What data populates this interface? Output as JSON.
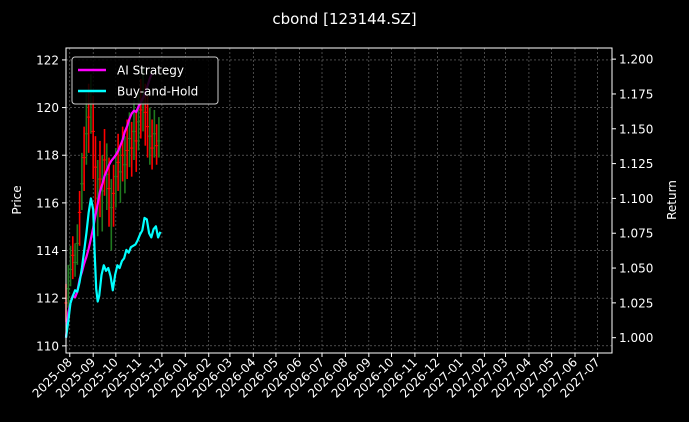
{
  "chart_data": {
    "type": "line",
    "title": "cbond [123144.SZ]",
    "xlabel": "",
    "ylabel_left": "Price",
    "ylabel_right": "Return",
    "x_range": [
      "2025-07-27",
      "2027-07-20"
    ],
    "x_ticks": [
      "2025-08",
      "2025-09",
      "2025-10",
      "2025-11",
      "2025-12",
      "2026-01",
      "2026-02",
      "2026-03",
      "2026-04",
      "2026-05",
      "2026-06",
      "2026-07",
      "2026-08",
      "2026-09",
      "2026-10",
      "2026-11",
      "2026-12",
      "2027-01",
      "2027-02",
      "2027-03",
      "2027-04",
      "2027-05",
      "2027-06",
      "2027-07"
    ],
    "ylim_left": [
      109.7,
      122.5
    ],
    "yticks_left": [
      "110",
      "112",
      "114",
      "116",
      "118",
      "120",
      "122"
    ],
    "ylim_right": [
      0.989,
      1.208
    ],
    "yticks_right": [
      "1.000",
      "1.025",
      "1.050",
      "1.075",
      "1.100",
      "1.125",
      "1.150",
      "1.175",
      "1.200"
    ],
    "grid": true,
    "legend": {
      "position": "top-left"
    },
    "series": [
      {
        "name": "AI Strategy",
        "axis": "right",
        "color": "#ff00ff",
        "points": [
          [
            "2025-07-27",
            1.0
          ],
          [
            "2025-07-30",
            1.018
          ],
          [
            "2025-08-02",
            1.025
          ],
          [
            "2025-08-05",
            1.03
          ],
          [
            "2025-08-08",
            1.029
          ],
          [
            "2025-08-11",
            1.033
          ],
          [
            "2025-08-14",
            1.042
          ],
          [
            "2025-08-17",
            1.047
          ],
          [
            "2025-08-20",
            1.053
          ],
          [
            "2025-08-23",
            1.058
          ],
          [
            "2025-08-26",
            1.064
          ],
          [
            "2025-08-29",
            1.071
          ],
          [
            "2025-09-01",
            1.079
          ],
          [
            "2025-09-04",
            1.088
          ],
          [
            "2025-09-07",
            1.096
          ],
          [
            "2025-09-10",
            1.105
          ],
          [
            "2025-09-13",
            1.11
          ],
          [
            "2025-09-16",
            1.116
          ],
          [
            "2025-09-19",
            1.12
          ],
          [
            "2025-09-22",
            1.124
          ],
          [
            "2025-09-25",
            1.127
          ],
          [
            "2025-09-28",
            1.129
          ],
          [
            "2025-10-01",
            1.131
          ],
          [
            "2025-10-04",
            1.134
          ],
          [
            "2025-10-07",
            1.138
          ],
          [
            "2025-10-10",
            1.142
          ],
          [
            "2025-10-13",
            1.148
          ],
          [
            "2025-10-16",
            1.152
          ],
          [
            "2025-10-19",
            1.157
          ],
          [
            "2025-10-22",
            1.161
          ],
          [
            "2025-10-25",
            1.163
          ],
          [
            "2025-10-28",
            1.162
          ],
          [
            "2025-10-31",
            1.166
          ],
          [
            "2025-11-03",
            1.169
          ],
          [
            "2025-11-06",
            1.172
          ],
          [
            "2025-11-09",
            1.176
          ],
          [
            "2025-11-12",
            1.181
          ],
          [
            "2025-11-15",
            1.186
          ],
          [
            "2025-11-18",
            1.19
          ]
        ]
      },
      {
        "name": "Buy-and-Hold",
        "axis": "right",
        "color": "#00ffff",
        "points": [
          [
            "2025-07-27",
            1.0
          ],
          [
            "2025-07-30",
            1.012
          ],
          [
            "2025-08-02",
            1.025
          ],
          [
            "2025-08-05",
            1.03
          ],
          [
            "2025-08-08",
            1.034
          ],
          [
            "2025-08-11",
            1.033
          ],
          [
            "2025-08-14",
            1.04
          ],
          [
            "2025-08-17",
            1.05
          ],
          [
            "2025-08-20",
            1.062
          ],
          [
            "2025-08-23",
            1.075
          ],
          [
            "2025-08-26",
            1.09
          ],
          [
            "2025-08-29",
            1.1
          ],
          [
            "2025-09-01",
            1.092
          ],
          [
            "2025-09-03",
            1.06
          ],
          [
            "2025-09-05",
            1.035
          ],
          [
            "2025-09-07",
            1.026
          ],
          [
            "2025-09-09",
            1.03
          ],
          [
            "2025-09-12",
            1.045
          ],
          [
            "2025-09-15",
            1.052
          ],
          [
            "2025-09-18",
            1.048
          ],
          [
            "2025-09-21",
            1.05
          ],
          [
            "2025-09-24",
            1.044
          ],
          [
            "2025-09-27",
            1.034
          ],
          [
            "2025-09-30",
            1.045
          ],
          [
            "2025-10-03",
            1.052
          ],
          [
            "2025-10-06",
            1.05
          ],
          [
            "2025-10-09",
            1.055
          ],
          [
            "2025-10-12",
            1.057
          ],
          [
            "2025-10-15",
            1.063
          ],
          [
            "2025-10-18",
            1.061
          ],
          [
            "2025-10-21",
            1.065
          ],
          [
            "2025-10-24",
            1.066
          ],
          [
            "2025-10-27",
            1.067
          ],
          [
            "2025-10-30",
            1.07
          ],
          [
            "2025-11-02",
            1.074
          ],
          [
            "2025-11-05",
            1.077
          ],
          [
            "2025-11-08",
            1.086
          ],
          [
            "2025-11-11",
            1.085
          ],
          [
            "2025-11-14",
            1.075
          ],
          [
            "2025-11-17",
            1.072
          ],
          [
            "2025-11-20",
            1.078
          ],
          [
            "2025-11-23",
            1.08
          ],
          [
            "2025-11-26",
            1.072
          ],
          [
            "2025-11-29",
            1.076
          ]
        ]
      }
    ],
    "price_bars": {
      "axis": "left",
      "up_color": "#1f7a1f",
      "down_color": "#ff0000",
      "points": [
        [
          "2025-07-27",
          111.8,
          111.0,
          112.6,
          "down"
        ],
        [
          "2025-07-30",
          112.4,
          111.6,
          113.4,
          "up"
        ],
        [
          "2025-08-02",
          113.2,
          112.5,
          114.2,
          "up"
        ],
        [
          "2025-08-05",
          113.8,
          112.8,
          114.6,
          "down"
        ],
        [
          "2025-08-08",
          113.5,
          112.9,
          114.3,
          "up"
        ],
        [
          "2025-08-11",
          114.3,
          113.4,
          115.1,
          "up"
        ],
        [
          "2025-08-14",
          115.6,
          114.2,
          116.5,
          "down"
        ],
        [
          "2025-08-17",
          116.8,
          115.7,
          118.1,
          "up"
        ],
        [
          "2025-08-20",
          117.9,
          116.5,
          119.2,
          "down"
        ],
        [
          "2025-08-23",
          118.9,
          117.6,
          120.6,
          "up"
        ],
        [
          "2025-08-26",
          119.6,
          118.1,
          121.0,
          "down"
        ],
        [
          "2025-08-29",
          120.2,
          118.9,
          121.4,
          "up"
        ],
        [
          "2025-09-01",
          119.0,
          117.0,
          120.5,
          "down"
        ],
        [
          "2025-09-04",
          117.5,
          115.6,
          118.8,
          "down"
        ],
        [
          "2025-09-07",
          116.2,
          114.6,
          117.8,
          "up"
        ],
        [
          "2025-09-10",
          117.0,
          115.4,
          118.6,
          "down"
        ],
        [
          "2025-09-13",
          116.5,
          114.8,
          118.0,
          "up"
        ],
        [
          "2025-09-16",
          117.8,
          116.3,
          119.1,
          "down"
        ],
        [
          "2025-09-19",
          117.2,
          115.7,
          118.5,
          "up"
        ],
        [
          "2025-09-22",
          116.6,
          115.0,
          117.9,
          "down"
        ],
        [
          "2025-09-25",
          115.8,
          114.0,
          117.0,
          "up"
        ],
        [
          "2025-09-28",
          116.4,
          115.0,
          117.6,
          "down"
        ],
        [
          "2025-10-01",
          117.1,
          115.8,
          118.3,
          "up"
        ],
        [
          "2025-10-04",
          117.7,
          116.5,
          118.9,
          "down"
        ],
        [
          "2025-10-07",
          117.3,
          116.0,
          118.4,
          "up"
        ],
        [
          "2025-10-10",
          118.0,
          116.9,
          119.2,
          "down"
        ],
        [
          "2025-10-13",
          117.6,
          116.4,
          118.8,
          "up"
        ],
        [
          "2025-10-16",
          118.2,
          117.0,
          119.5,
          "down"
        ],
        [
          "2025-10-19",
          118.7,
          117.5,
          119.8,
          "up"
        ],
        [
          "2025-10-22",
          118.3,
          117.1,
          119.4,
          "down"
        ],
        [
          "2025-10-25",
          119.0,
          117.8,
          120.3,
          "up"
        ],
        [
          "2025-10-28",
          118.6,
          117.3,
          119.9,
          "down"
        ],
        [
          "2025-10-31",
          119.4,
          118.2,
          120.6,
          "up"
        ],
        [
          "2025-11-03",
          119.9,
          118.7,
          121.2,
          "down"
        ],
        [
          "2025-11-06",
          120.4,
          119.0,
          121.7,
          "up"
        ],
        [
          "2025-11-09",
          119.8,
          118.4,
          121.0,
          "down"
        ],
        [
          "2025-11-12",
          119.2,
          117.9,
          120.5,
          "down"
        ],
        [
          "2025-11-15",
          118.8,
          117.6,
          120.0,
          "up"
        ],
        [
          "2025-11-18",
          118.3,
          117.4,
          119.5,
          "down"
        ],
        [
          "2025-11-21",
          118.9,
          117.9,
          119.9,
          "up"
        ],
        [
          "2025-11-24",
          118.4,
          117.6,
          119.3,
          "down"
        ],
        [
          "2025-11-27",
          118.6,
          117.9,
          119.6,
          "up"
        ]
      ]
    }
  }
}
